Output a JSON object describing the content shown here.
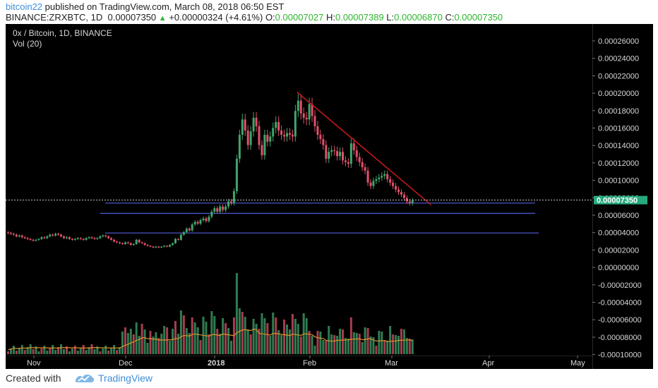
{
  "header": {
    "author": "bitcoin22",
    "published": "published on TradingView.com, March 08, 2018 06:50 EST",
    "symbol": "BINANCE:ZRXBTC, 1D",
    "last": "0.00007350",
    "change_arrow": "▲",
    "change": "+0.00000324 (+4.61%)",
    "o_label": "O:",
    "o_value": "0.00007027",
    "h_label": "H:",
    "h_value": "0.00007389",
    "l_label": "L:",
    "l_value": "0.00006870",
    "c_label": "C:",
    "c_value": "0.00007350"
  },
  "chart": {
    "title": "0x / Bitcoin, 1D, BINANCE",
    "vol_label": "Vol (20)",
    "price_label": "0.00007350"
  },
  "footer": {
    "created_with": "Created with",
    "brand": "TradingView"
  },
  "colors": {
    "up": "#3fa66b",
    "down": "#e0506a",
    "trendline": "#c21818",
    "support": "#4a56c8",
    "ma": "#e0912b",
    "price_tag": "#27a97f"
  },
  "chart_data": {
    "type": "candlestick",
    "y_ticks": [
      "0.00026000",
      "0.00024000",
      "0.00022000",
      "0.00020000",
      "0.00018000",
      "0.00016000",
      "0.00014000",
      "0.00012000",
      "0.00010000",
      "0.00008000",
      "0.00006000",
      "0.00004000",
      "0.00002000",
      "0.00000000",
      "-0.00002000",
      "-0.00004000",
      "-0.00006000",
      "-0.00008000",
      "-0.00010000"
    ],
    "x_ticks": [
      "Nov",
      "Dec",
      "2018",
      "Feb",
      "Mar",
      "Apr",
      "May"
    ],
    "ylim": [
      -0.0001,
      0.00027
    ],
    "candles": [
      {
        "t": 0,
        "c": 3.5e-05
      },
      {
        "t": 1,
        "c": 3.4e-05
      },
      {
        "t": 2,
        "c": 3.3e-05
      },
      {
        "t": 3,
        "c": 3.1e-05
      },
      {
        "t": 4,
        "c": 3.2e-05
      },
      {
        "t": 5,
        "c": 3e-05
      },
      {
        "t": 6,
        "c": 2.9e-05
      },
      {
        "t": 7,
        "c": 2.8e-05
      },
      {
        "t": 8,
        "c": 2.7e-05
      },
      {
        "t": 9,
        "c": 2.6e-05
      },
      {
        "t": 10,
        "c": 2.7e-05
      },
      {
        "t": 11,
        "c": 2.8e-05
      },
      {
        "t": 12,
        "c": 3e-05
      },
      {
        "t": 13,
        "c": 2.9e-05
      },
      {
        "t": 14,
        "c": 3.1e-05
      },
      {
        "t": 15,
        "c": 3.3e-05
      },
      {
        "t": 16,
        "c": 3.2e-05
      },
      {
        "t": 17,
        "c": 3.4e-05
      },
      {
        "t": 18,
        "c": 3.3e-05
      },
      {
        "t": 19,
        "c": 3.1e-05
      },
      {
        "t": 20,
        "c": 2.9e-05
      },
      {
        "t": 21,
        "c": 3e-05
      },
      {
        "t": 22,
        "c": 2.8e-05
      },
      {
        "t": 23,
        "c": 2.7e-05
      },
      {
        "t": 24,
        "c": 2.8e-05
      },
      {
        "t": 25,
        "c": 2.9e-05
      },
      {
        "t": 26,
        "c": 2.8e-05
      },
      {
        "t": 27,
        "c": 2.7e-05
      },
      {
        "t": 28,
        "c": 2.9e-05
      },
      {
        "t": 29,
        "c": 3e-05
      },
      {
        "t": 30,
        "c": 2.9e-05
      },
      {
        "t": 31,
        "c": 2.8e-05
      },
      {
        "t": 32,
        "c": 2.9e-05
      },
      {
        "t": 33,
        "c": 3.1e-05
      },
      {
        "t": 34,
        "c": 3.2e-05
      },
      {
        "t": 35,
        "c": 3.1e-05
      },
      {
        "t": 36,
        "c": 2.9e-05
      },
      {
        "t": 37,
        "c": 2.7e-05
      },
      {
        "t": 38,
        "c": 2.5e-05
      },
      {
        "t": 39,
        "c": 2.4e-05
      },
      {
        "t": 40,
        "c": 2.3e-05
      },
      {
        "t": 41,
        "c": 2.2e-05
      },
      {
        "t": 42,
        "c": 2.4e-05
      },
      {
        "t": 43,
        "c": 2.3e-05
      },
      {
        "t": 44,
        "c": 2.1e-05
      },
      {
        "t": 45,
        "c": 2.2e-05
      },
      {
        "t": 46,
        "c": 2.7e-05
      },
      {
        "t": 47,
        "c": 2.4e-05
      },
      {
        "t": 48,
        "c": 2.3e-05
      },
      {
        "t": 49,
        "c": 2.1e-05
      },
      {
        "t": 50,
        "c": 2e-05
      },
      {
        "t": 51,
        "c": 1.9e-05
      },
      {
        "t": 52,
        "c": 1.8e-05
      },
      {
        "t": 53,
        "c": 1.9e-05
      },
      {
        "t": 54,
        "c": 1.8e-05
      },
      {
        "t": 55,
        "c": 1.9e-05
      },
      {
        "t": 56,
        "c": 2e-05
      },
      {
        "t": 57,
        "c": 1.9e-05
      },
      {
        "t": 58,
        "c": 2.1e-05
      },
      {
        "t": 59,
        "c": 2.3e-05
      },
      {
        "t": 60,
        "c": 2.8e-05
      },
      {
        "t": 61,
        "c": 2.7e-05
      },
      {
        "t": 62,
        "c": 3.3e-05
      },
      {
        "t": 63,
        "c": 3.6e-05
      },
      {
        "t": 64,
        "c": 4e-05
      },
      {
        "t": 65,
        "c": 3.8e-05
      },
      {
        "t": 66,
        "c": 4.5e-05
      },
      {
        "t": 67,
        "c": 4.8e-05
      },
      {
        "t": 68,
        "c": 4.6e-05
      },
      {
        "t": 69,
        "c": 5e-05
      },
      {
        "t": 70,
        "c": 5.2e-05
      },
      {
        "t": 71,
        "c": 4.9e-05
      },
      {
        "t": 72,
        "c": 5.4e-05
      },
      {
        "t": 73,
        "c": 6e-05
      },
      {
        "t": 74,
        "c": 6.4e-05
      },
      {
        "t": 75,
        "c": 6e-05
      },
      {
        "t": 76,
        "c": 6.6e-05
      },
      {
        "t": 77,
        "c": 6.2e-05
      },
      {
        "t": 78,
        "c": 6.6e-05
      },
      {
        "t": 79,
        "c": 7.2e-05
      },
      {
        "t": 80,
        "c": 7e-05
      },
      {
        "t": 81,
        "c": 8.4e-05
      },
      {
        "t": 82,
        "c": 0.000122
      },
      {
        "t": 83,
        "c": 0.00015
      },
      {
        "t": 84,
        "c": 0.000168
      },
      {
        "t": 85,
        "c": 0.000155
      },
      {
        "t": 86,
        "c": 0.000138
      },
      {
        "t": 87,
        "c": 0.000154
      },
      {
        "t": 88,
        "c": 0.00017
      },
      {
        "t": 89,
        "c": 0.00016
      },
      {
        "t": 90,
        "c": 0.000138
      },
      {
        "t": 91,
        "c": 0.000126
      },
      {
        "t": 92,
        "c": 0.00015
      },
      {
        "t": 93,
        "c": 0.000142
      },
      {
        "t": 94,
        "c": 0.000148
      },
      {
        "t": 95,
        "c": 0.000158
      },
      {
        "t": 96,
        "c": 0.000165
      },
      {
        "t": 97,
        "c": 0.000155
      },
      {
        "t": 98,
        "c": 0.00015
      },
      {
        "t": 99,
        "c": 0.000148
      },
      {
        "t": 100,
        "c": 0.000152
      },
      {
        "t": 101,
        "c": 0.00015
      },
      {
        "t": 102,
        "c": 0.000148
      },
      {
        "t": 103,
        "c": 0.000178
      },
      {
        "t": 104,
        "c": 0.00019
      },
      {
        "t": 105,
        "c": 0.000175
      },
      {
        "t": 106,
        "c": 0.00017
      },
      {
        "t": 107,
        "c": 0.000168
      },
      {
        "t": 108,
        "c": 0.000186
      },
      {
        "t": 109,
        "c": 0.000172
      },
      {
        "t": 110,
        "c": 0.00016
      },
      {
        "t": 111,
        "c": 0.00015
      },
      {
        "t": 112,
        "c": 0.000145
      },
      {
        "t": 113,
        "c": 0.000138
      },
      {
        "t": 114,
        "c": 0.000122
      },
      {
        "t": 115,
        "c": 0.00013
      },
      {
        "t": 116,
        "c": 0.000132
      },
      {
        "t": 117,
        "c": 0.000131
      },
      {
        "t": 118,
        "c": 0.000125
      },
      {
        "t": 119,
        "c": 0.00013
      },
      {
        "t": 120,
        "c": 0.00012
      },
      {
        "t": 121,
        "c": 0.000118
      },
      {
        "t": 122,
        "c": 0.000116
      },
      {
        "t": 123,
        "c": 0.00014
      },
      {
        "t": 124,
        "c": 0.000132
      },
      {
        "t": 125,
        "c": 0.000124
      },
      {
        "t": 126,
        "c": 0.000118
      },
      {
        "t": 127,
        "c": 0.000112
      },
      {
        "t": 128,
        "c": 0.000108
      },
      {
        "t": 129,
        "c": 9.4e-05
      },
      {
        "t": 130,
        "c": 9e-05
      },
      {
        "t": 131,
        "c": 9.6e-05
      },
      {
        "t": 132,
        "c": 9.8e-05
      },
      {
        "t": 133,
        "c": 0.0001
      },
      {
        "t": 134,
        "c": 0.000102
      },
      {
        "t": 135,
        "c": 0.000104
      },
      {
        "t": 136,
        "c": 9.8e-05
      },
      {
        "t": 137,
        "c": 9.4e-05
      },
      {
        "t": 138,
        "c": 9e-05
      },
      {
        "t": 139,
        "c": 8.6e-05
      },
      {
        "t": 140,
        "c": 8.3e-05
      },
      {
        "t": 141,
        "c": 8e-05
      },
      {
        "t": 142,
        "c": 7.6e-05
      },
      {
        "t": 143,
        "c": 7.2e-05
      },
      {
        "t": 144,
        "c": 7e-05
      },
      {
        "t": 145,
        "c": 7.3e-05
      }
    ],
    "volume_max_index": 82,
    "trendline": [
      {
        "t": 104,
        "y": 0.0002
      },
      {
        "t": 152,
        "y": 6.8e-05
      }
    ],
    "support_levels": [
      7e-05,
      5.8e-05,
      3.5e-05
    ],
    "last_price": 7.35e-05
  }
}
